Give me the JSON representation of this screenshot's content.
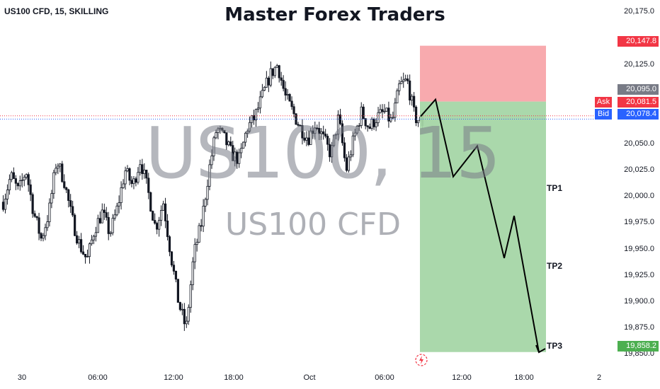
{
  "header": {
    "symbol": "US100 CFD, 15, SKILLING",
    "title": "Master Forex Traders"
  },
  "watermark": {
    "primary": "US100, 15",
    "secondary": "US100 CFD"
  },
  "colors": {
    "up": "#131722",
    "down": "#131722",
    "stop_zone": "#f7a1a5",
    "target_zone": "#a5d6a7",
    "ask": "#f23645",
    "bid": "#2962ff",
    "entry_tag": "#787b86",
    "tp_tag": "#4caf50",
    "sl_tag": "#f23645"
  },
  "axis": {
    "price_ticks": [
      "20,175.0",
      "20,125.0",
      "20,050.0",
      "20,025.0",
      "20,000.0",
      "19,975.0",
      "19,950.0",
      "19,925.0",
      "19,900.0",
      "19,875.0",
      "19,850.0"
    ],
    "time_ticks": [
      "30",
      "06:00",
      "12:00",
      "18:00",
      "Oct",
      "06:00",
      "12:00",
      "18:00",
      "2"
    ]
  },
  "tags": {
    "stop_loss": "20,147.8",
    "entry": "20,095.0",
    "ask_label": "Ask",
    "ask_value": "20,081.5",
    "bid_label": "Bid",
    "bid_value": "20,078.4",
    "target": "19,858.2"
  },
  "targets": [
    "TP1",
    "TP2",
    "TP3"
  ],
  "chart_data": {
    "type": "candlestick",
    "title": "Master Forex Traders",
    "symbol": "US100 CFD, 15, SKILLING",
    "ylim": [
      19848,
      20183
    ],
    "x_labels": [
      "30",
      "06:00",
      "12:00",
      "18:00",
      "Oct",
      "06:00",
      "12:00",
      "18:00",
      "2"
    ],
    "close_path": [
      20000,
      20025,
      20010,
      20030,
      19990,
      19965,
      19990,
      20040,
      20020,
      19985,
      19960,
      19945,
      19975,
      19990,
      19970,
      19995,
      20030,
      20015,
      20040,
      20010,
      19975,
      20000,
      19950,
      19905,
      19880,
      19950,
      19980,
      20030,
      20070,
      20060,
      20045,
      20040,
      20070,
      20080,
      20100,
      20120,
      20130,
      20100,
      20085,
      20070,
      20060,
      20075,
      20060,
      20045,
      20080,
      20030,
      20060,
      20085,
      20070,
      20080,
      20085,
      20075,
      20110,
      20115,
      20080,
      20075
    ],
    "position": {
      "side": "short",
      "stop_loss": 20147.8,
      "entry": 20095.0,
      "target": 19858.2
    },
    "ask": 20081.5,
    "bid": 20078.4,
    "projection": [
      20081,
      20097,
      20024,
      20053,
      19947,
      19987,
      19858
    ],
    "annotations": [
      "TP1",
      "TP2",
      "TP3"
    ]
  }
}
